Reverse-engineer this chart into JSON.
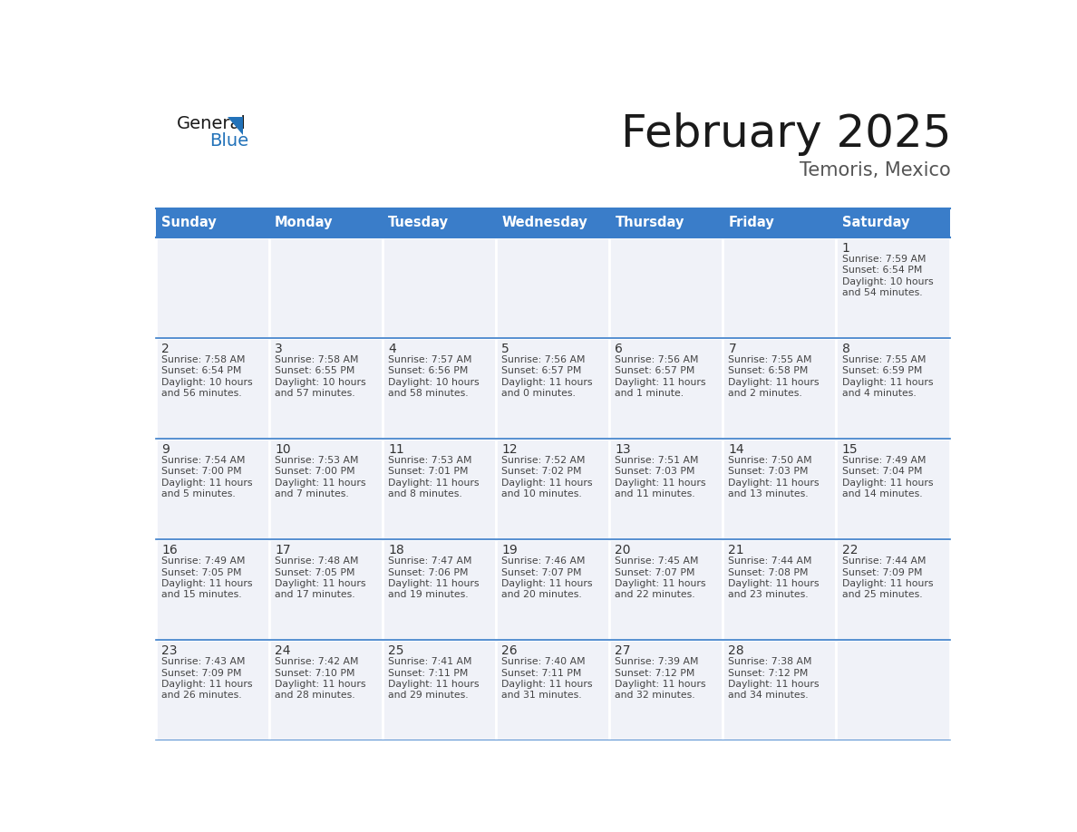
{
  "title": "February 2025",
  "subtitle": "Temoris, Mexico",
  "header_bg": "#3A7DC9",
  "header_text_color": "#FFFFFF",
  "cell_bg": "#F0F2F8",
  "cell_bg_white": "#FFFFFF",
  "border_color": "#3A7DC9",
  "separator_color": "#3A7DC9",
  "day_names": [
    "Sunday",
    "Monday",
    "Tuesday",
    "Wednesday",
    "Thursday",
    "Friday",
    "Saturday"
  ],
  "days": [
    {
      "day": 1,
      "col": 6,
      "row": 0,
      "sunrise": "7:59 AM",
      "sunset": "6:54 PM",
      "dl1": "10 hours",
      "dl2": "54 minutes."
    },
    {
      "day": 2,
      "col": 0,
      "row": 1,
      "sunrise": "7:58 AM",
      "sunset": "6:54 PM",
      "dl1": "10 hours",
      "dl2": "56 minutes."
    },
    {
      "day": 3,
      "col": 1,
      "row": 1,
      "sunrise": "7:58 AM",
      "sunset": "6:55 PM",
      "dl1": "10 hours",
      "dl2": "57 minutes."
    },
    {
      "day": 4,
      "col": 2,
      "row": 1,
      "sunrise": "7:57 AM",
      "sunset": "6:56 PM",
      "dl1": "10 hours",
      "dl2": "58 minutes."
    },
    {
      "day": 5,
      "col": 3,
      "row": 1,
      "sunrise": "7:56 AM",
      "sunset": "6:57 PM",
      "dl1": "11 hours",
      "dl2": "0 minutes."
    },
    {
      "day": 6,
      "col": 4,
      "row": 1,
      "sunrise": "7:56 AM",
      "sunset": "6:57 PM",
      "dl1": "11 hours",
      "dl2": "1 minute."
    },
    {
      "day": 7,
      "col": 5,
      "row": 1,
      "sunrise": "7:55 AM",
      "sunset": "6:58 PM",
      "dl1": "11 hours",
      "dl2": "2 minutes."
    },
    {
      "day": 8,
      "col": 6,
      "row": 1,
      "sunrise": "7:55 AM",
      "sunset": "6:59 PM",
      "dl1": "11 hours",
      "dl2": "4 minutes."
    },
    {
      "day": 9,
      "col": 0,
      "row": 2,
      "sunrise": "7:54 AM",
      "sunset": "7:00 PM",
      "dl1": "11 hours",
      "dl2": "5 minutes."
    },
    {
      "day": 10,
      "col": 1,
      "row": 2,
      "sunrise": "7:53 AM",
      "sunset": "7:00 PM",
      "dl1": "11 hours",
      "dl2": "7 minutes."
    },
    {
      "day": 11,
      "col": 2,
      "row": 2,
      "sunrise": "7:53 AM",
      "sunset": "7:01 PM",
      "dl1": "11 hours",
      "dl2": "8 minutes."
    },
    {
      "day": 12,
      "col": 3,
      "row": 2,
      "sunrise": "7:52 AM",
      "sunset": "7:02 PM",
      "dl1": "11 hours",
      "dl2": "10 minutes."
    },
    {
      "day": 13,
      "col": 4,
      "row": 2,
      "sunrise": "7:51 AM",
      "sunset": "7:03 PM",
      "dl1": "11 hours",
      "dl2": "11 minutes."
    },
    {
      "day": 14,
      "col": 5,
      "row": 2,
      "sunrise": "7:50 AM",
      "sunset": "7:03 PM",
      "dl1": "11 hours",
      "dl2": "13 minutes."
    },
    {
      "day": 15,
      "col": 6,
      "row": 2,
      "sunrise": "7:49 AM",
      "sunset": "7:04 PM",
      "dl1": "11 hours",
      "dl2": "14 minutes."
    },
    {
      "day": 16,
      "col": 0,
      "row": 3,
      "sunrise": "7:49 AM",
      "sunset": "7:05 PM",
      "dl1": "11 hours",
      "dl2": "15 minutes."
    },
    {
      "day": 17,
      "col": 1,
      "row": 3,
      "sunrise": "7:48 AM",
      "sunset": "7:05 PM",
      "dl1": "11 hours",
      "dl2": "17 minutes."
    },
    {
      "day": 18,
      "col": 2,
      "row": 3,
      "sunrise": "7:47 AM",
      "sunset": "7:06 PM",
      "dl1": "11 hours",
      "dl2": "19 minutes."
    },
    {
      "day": 19,
      "col": 3,
      "row": 3,
      "sunrise": "7:46 AM",
      "sunset": "7:07 PM",
      "dl1": "11 hours",
      "dl2": "20 minutes."
    },
    {
      "day": 20,
      "col": 4,
      "row": 3,
      "sunrise": "7:45 AM",
      "sunset": "7:07 PM",
      "dl1": "11 hours",
      "dl2": "22 minutes."
    },
    {
      "day": 21,
      "col": 5,
      "row": 3,
      "sunrise": "7:44 AM",
      "sunset": "7:08 PM",
      "dl1": "11 hours",
      "dl2": "23 minutes."
    },
    {
      "day": 22,
      "col": 6,
      "row": 3,
      "sunrise": "7:44 AM",
      "sunset": "7:09 PM",
      "dl1": "11 hours",
      "dl2": "25 minutes."
    },
    {
      "day": 23,
      "col": 0,
      "row": 4,
      "sunrise": "7:43 AM",
      "sunset": "7:09 PM",
      "dl1": "11 hours",
      "dl2": "26 minutes."
    },
    {
      "day": 24,
      "col": 1,
      "row": 4,
      "sunrise": "7:42 AM",
      "sunset": "7:10 PM",
      "dl1": "11 hours",
      "dl2": "28 minutes."
    },
    {
      "day": 25,
      "col": 2,
      "row": 4,
      "sunrise": "7:41 AM",
      "sunset": "7:11 PM",
      "dl1": "11 hours",
      "dl2": "29 minutes."
    },
    {
      "day": 26,
      "col": 3,
      "row": 4,
      "sunrise": "7:40 AM",
      "sunset": "7:11 PM",
      "dl1": "11 hours",
      "dl2": "31 minutes."
    },
    {
      "day": 27,
      "col": 4,
      "row": 4,
      "sunrise": "7:39 AM",
      "sunset": "7:12 PM",
      "dl1": "11 hours",
      "dl2": "32 minutes."
    },
    {
      "day": 28,
      "col": 5,
      "row": 4,
      "sunrise": "7:38 AM",
      "sunset": "7:12 PM",
      "dl1": "11 hours",
      "dl2": "34 minutes."
    }
  ],
  "num_rows": 5,
  "num_cols": 7,
  "logo_dark_color": "#1a1a1a",
  "logo_blue_color": "#2272B9",
  "title_color": "#1a1a1a",
  "subtitle_color": "#555555",
  "day_num_color": "#333333",
  "info_color": "#444444",
  "fig_width": 11.88,
  "fig_height": 9.18,
  "dpi": 100
}
